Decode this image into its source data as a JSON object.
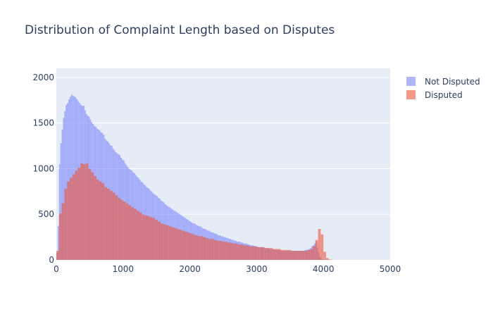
{
  "chart_data": {
    "type": "bar",
    "title": "Distribution of Complaint Length based on Disputes",
    "xlabel": "",
    "ylabel": "",
    "xlim": [
      0,
      5000
    ],
    "ylim": [
      0,
      2100
    ],
    "x_ticks": [
      "0",
      "1000",
      "2000",
      "3000",
      "4000",
      "5000"
    ],
    "y_ticks": [
      "0",
      "500",
      "1000",
      "1500",
      "2000"
    ],
    "y_tick_values": [
      0,
      500,
      1000,
      1500,
      2000
    ],
    "x_tick_values": [
      0,
      1000,
      2000,
      3000,
      4000,
      5000
    ],
    "grid": "horizontal",
    "legend_position": "top-right",
    "barmode": "overlay",
    "series": [
      {
        "name": "Not Disputed",
        "color": "#636efa",
        "opacity": 0.5,
        "bin_width": 20,
        "bin_start": 0,
        "values": [
          80,
          370,
          1050,
          1280,
          1430,
          1560,
          1630,
          1700,
          1720,
          1760,
          1790,
          1810,
          1800,
          1790,
          1780,
          1760,
          1740,
          1720,
          1700,
          1690,
          1690,
          1640,
          1600,
          1580,
          1570,
          1540,
          1510,
          1490,
          1470,
          1460,
          1440,
          1430,
          1420,
          1400,
          1390,
          1370,
          1330,
          1310,
          1300,
          1280,
          1260,
          1250,
          1220,
          1200,
          1180,
          1170,
          1160,
          1150,
          1120,
          1100,
          1090,
          1060,
          1040,
          1020,
          1000,
          990,
          980,
          960,
          950,
          930,
          910,
          900,
          880,
          860,
          850,
          830,
          820,
          800,
          790,
          780,
          760,
          750,
          730,
          720,
          710,
          700,
          680,
          670,
          650,
          640,
          630,
          610,
          600,
          590,
          580,
          570,
          560,
          550,
          540,
          530,
          520,
          510,
          500,
          490,
          480,
          470,
          460,
          450,
          440,
          430,
          420,
          410,
          400,
          400,
          390,
          380,
          370,
          370,
          360,
          350,
          340,
          340,
          330,
          320,
          320,
          310,
          300,
          300,
          290,
          290,
          280,
          270,
          270,
          260,
          260,
          250,
          250,
          240,
          240,
          230,
          230,
          220,
          220,
          210,
          210,
          200,
          200,
          200,
          190,
          190,
          180,
          180,
          180,
          170,
          170,
          160,
          160,
          160,
          150,
          150,
          150,
          140,
          140,
          140,
          140,
          130,
          130,
          130,
          130,
          120,
          120,
          120,
          120,
          110,
          110,
          110,
          110,
          110,
          100,
          100,
          100,
          100,
          100,
          100,
          100,
          100,
          100,
          100,
          100,
          100,
          100,
          100,
          100,
          100,
          100,
          100,
          110,
          110,
          110,
          120,
          130,
          150,
          160,
          180,
          200,
          140,
          80,
          30,
          10,
          5,
          3,
          1,
          0,
          0,
          0,
          0,
          0,
          0,
          0,
          0,
          0,
          0,
          0,
          0,
          0,
          0,
          0,
          0,
          0,
          0,
          0,
          0,
          0,
          0,
          0,
          0,
          0,
          0,
          0,
          0,
          0,
          0,
          0,
          0,
          0,
          0,
          0,
          0,
          0,
          0,
          0,
          0,
          0,
          0,
          0,
          0,
          0,
          0,
          0,
          0,
          0,
          0,
          0,
          0,
          0,
          0,
          0,
          0,
          0,
          0,
          0,
          0,
          0,
          0,
          0
        ]
      },
      {
        "name": "Disputed",
        "color": "#ef553b",
        "opacity": 0.6,
        "bin_width": 40,
        "bin_start": 0,
        "values": [
          100,
          510,
          620,
          780,
          860,
          900,
          940,
          980,
          1010,
          1060,
          1050,
          1060,
          1000,
          960,
          920,
          880,
          860,
          840,
          800,
          780,
          760,
          740,
          710,
          680,
          660,
          640,
          620,
          600,
          580,
          560,
          540,
          520,
          500,
          490,
          480,
          470,
          460,
          440,
          420,
          400,
          390,
          380,
          370,
          360,
          350,
          340,
          330,
          320,
          310,
          300,
          290,
          280,
          270,
          260,
          260,
          250,
          240,
          230,
          230,
          220,
          210,
          210,
          200,
          200,
          190,
          190,
          180,
          180,
          170,
          170,
          160,
          160,
          150,
          150,
          150,
          140,
          140,
          140,
          130,
          130,
          130,
          120,
          120,
          120,
          110,
          110,
          110,
          110,
          100,
          100,
          100,
          100,
          100,
          100,
          110,
          120,
          150,
          220,
          340,
          280,
          90,
          20,
          5,
          0,
          0,
          0,
          0,
          0,
          0,
          0,
          0,
          0,
          0,
          0,
          0,
          0,
          0,
          0,
          0,
          0,
          0,
          0,
          0,
          0,
          0
        ]
      }
    ]
  }
}
